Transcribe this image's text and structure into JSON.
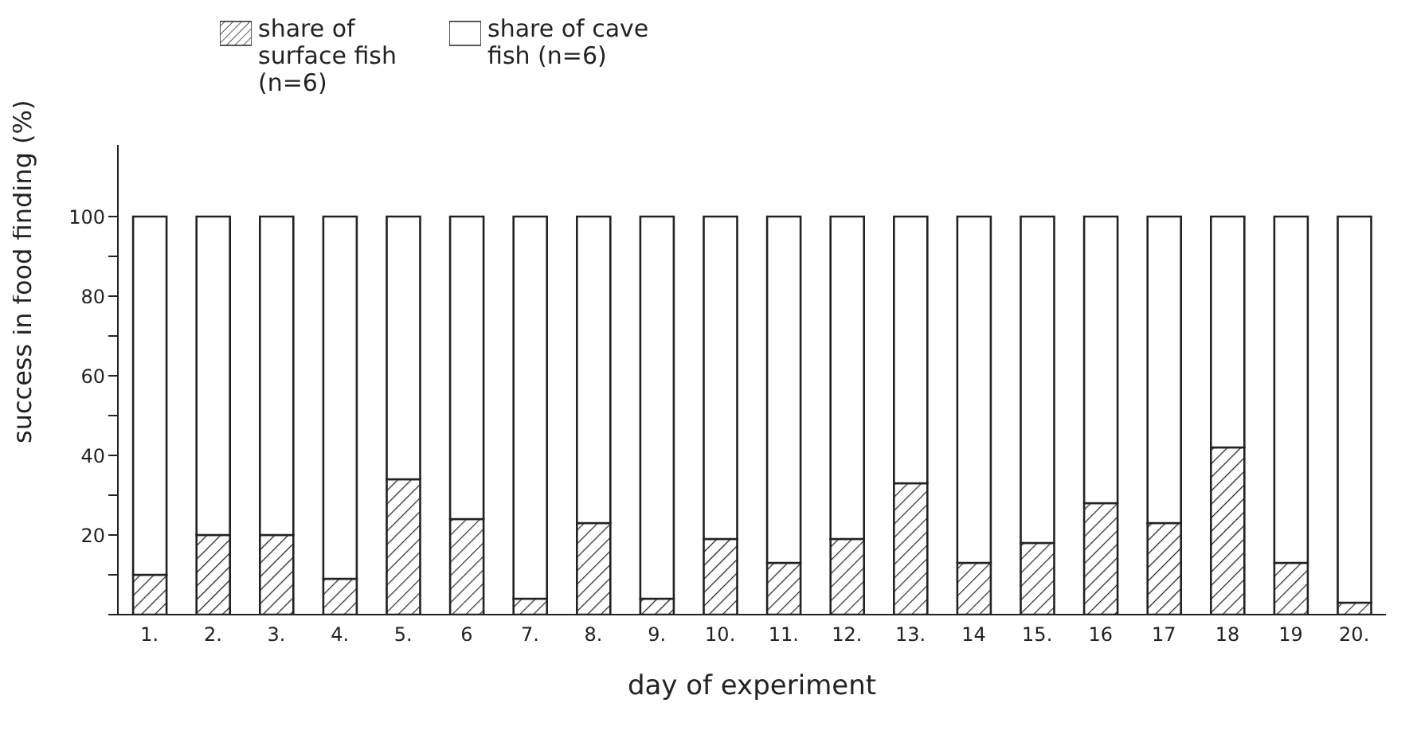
{
  "chart_data": {
    "type": "bar",
    "stacked": true,
    "xlabel": "day of experiment",
    "ylabel": "success in food finding (%)",
    "categories": [
      "1.",
      "2.",
      "3.",
      "4.",
      "5.",
      "6",
      "7.",
      "8.",
      "9.",
      "10.",
      "11.",
      "12.",
      "13.",
      "14",
      "15.",
      "16",
      "17",
      "18",
      "19",
      "20."
    ],
    "series": [
      {
        "name": "share of surface fish (n=6)",
        "color": "#222222",
        "values": [
          10,
          20,
          20,
          9,
          34,
          24,
          4,
          23,
          4,
          19,
          13,
          19,
          33,
          13,
          18,
          28,
          23,
          42,
          13,
          3
        ]
      },
      {
        "name": "share of cave fish (n=6)",
        "color": "#ffffff",
        "values": [
          90,
          80,
          80,
          91,
          66,
          76,
          96,
          77,
          96,
          81,
          87,
          81,
          67,
          87,
          82,
          72,
          77,
          58,
          87,
          97
        ]
      }
    ],
    "ylim": [
      0,
      118
    ],
    "yticks": [
      {
        "value": 0,
        "label": null
      },
      {
        "value": 10,
        "label": null
      },
      {
        "value": 20,
        "label": "20"
      },
      {
        "value": 30,
        "label": null
      },
      {
        "value": 40,
        "label": "40"
      },
      {
        "value": 50,
        "label": null
      },
      {
        "value": 60,
        "label": "60"
      },
      {
        "value": 70,
        "label": null
      },
      {
        "value": 80,
        "label": "80"
      },
      {
        "value": 90,
        "label": null
      },
      {
        "value": 100,
        "label": "100"
      }
    ],
    "grid": false,
    "legend": "top"
  }
}
